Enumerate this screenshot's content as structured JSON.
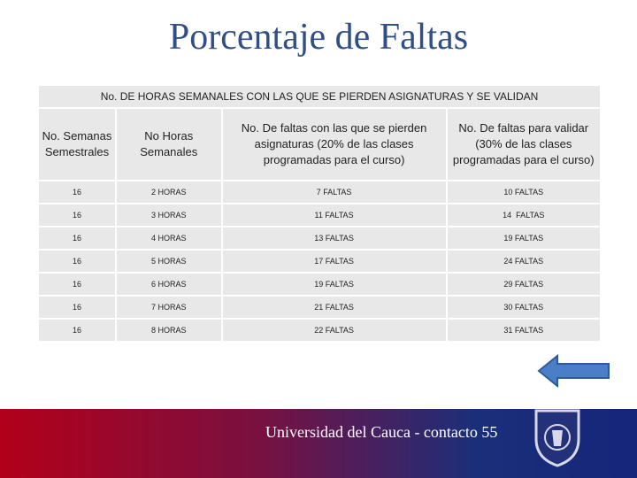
{
  "header": {
    "title": "Porcentaje de Faltas"
  },
  "table": {
    "caption": "No. DE HORAS SEMANALES CON LAS QUE SE PIERDEN ASIGNATURAS Y SE VALIDAN",
    "columns": [
      "No. Semanas Semestrales",
      "No Horas Semanales",
      "No. De faltas con las que se pierden asignaturas (20% de las clases programadas para el curso)",
      "No. De faltas para validar (30% de las clases programadas para el curso)"
    ],
    "rows": [
      [
        "16",
        "2 HORAS",
        "7 FALTAS",
        "10 FALTAS"
      ],
      [
        "16",
        "3 HORAS",
        "11 FALTAS",
        "14  FALTAS"
      ],
      [
        "16",
        "4 HORAS",
        "13 FALTAS",
        "19 FALTAS"
      ],
      [
        "16",
        "5 HORAS",
        "17 FALTAS",
        "24 FALTAS"
      ],
      [
        "16",
        "6 HORAS",
        "19 FALTAS",
        "29 FALTAS"
      ],
      [
        "16",
        "7 HORAS",
        "21 FALTAS",
        "30 FALTAS"
      ],
      [
        "16",
        "8 HORAS",
        "22 FALTAS",
        "31 FALTAS"
      ]
    ]
  },
  "footer": {
    "text": "Universidad del Cauca - contacto 55"
  }
}
